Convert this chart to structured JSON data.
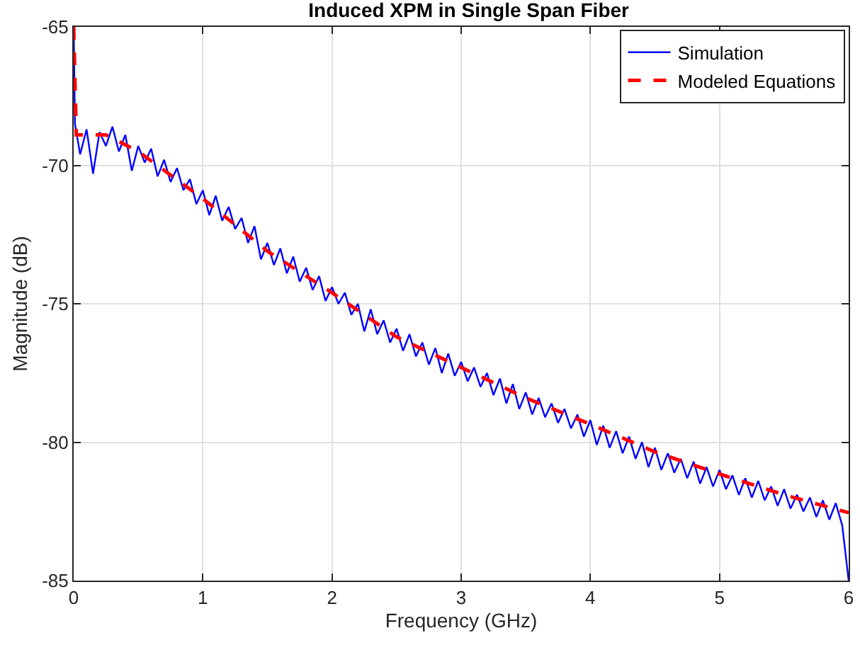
{
  "chart_data": {
    "type": "line",
    "title": "Induced XPM in Single Span Fiber",
    "xlabel": "Frequency (GHz)",
    "ylabel": "Magnitude (dB)",
    "xlim": [
      0,
      6
    ],
    "ylim": [
      -85,
      -65
    ],
    "xticks": [
      0,
      1,
      2,
      3,
      4,
      5,
      6
    ],
    "yticks": [
      -85,
      -80,
      -75,
      -70,
      -65
    ],
    "grid": true,
    "legend": "top right",
    "series": [
      {
        "name": "Simulation",
        "color": "#0000ff",
        "line_style": "solid",
        "x": [
          0,
          0.01,
          0.05,
          0.1,
          0.15,
          0.2,
          0.25,
          0.3,
          0.35,
          0.4,
          0.45,
          0.5,
          0.55,
          0.6,
          0.65,
          0.7,
          0.75,
          0.8,
          0.85,
          0.9,
          0.95,
          1,
          1.05,
          1.1,
          1.15,
          1.2,
          1.25,
          1.3,
          1.35,
          1.4,
          1.45,
          1.5,
          1.55,
          1.6,
          1.65,
          1.7,
          1.75,
          1.8,
          1.85,
          1.9,
          1.95,
          2,
          2.05,
          2.1,
          2.15,
          2.2,
          2.25,
          2.3,
          2.35,
          2.4,
          2.45,
          2.5,
          2.55,
          2.6,
          2.65,
          2.7,
          2.75,
          2.8,
          2.85,
          2.9,
          2.95,
          3,
          3.05,
          3.1,
          3.15,
          3.2,
          3.25,
          3.3,
          3.35,
          3.4,
          3.45,
          3.5,
          3.55,
          3.6,
          3.65,
          3.7,
          3.75,
          3.8,
          3.85,
          3.9,
          3.95,
          4,
          4.05,
          4.1,
          4.15,
          4.2,
          4.25,
          4.3,
          4.35,
          4.4,
          4.45,
          4.5,
          4.55,
          4.6,
          4.65,
          4.7,
          4.75,
          4.8,
          4.85,
          4.9,
          4.95,
          5,
          5.05,
          5.1,
          5.15,
          5.2,
          5.25,
          5.3,
          5.35,
          5.4,
          5.45,
          5.5,
          5.55,
          5.6,
          5.65,
          5.7,
          5.75,
          5.8,
          5.85,
          5.9,
          5.95,
          6
        ],
        "values": [
          -65,
          -68.5,
          -69.6,
          -68.7,
          -70.3,
          -68.8,
          -69.3,
          -68.6,
          -69.5,
          -68.9,
          -70.2,
          -69.3,
          -69.9,
          -69.4,
          -70.4,
          -69.8,
          -70.6,
          -70.1,
          -70.9,
          -70.5,
          -71.4,
          -70.9,
          -71.8,
          -71.1,
          -72,
          -71.5,
          -72.3,
          -71.9,
          -72.8,
          -72.2,
          -73.4,
          -72.8,
          -73.6,
          -73,
          -73.9,
          -73.3,
          -74.2,
          -73.7,
          -74.5,
          -74,
          -74.9,
          -74.4,
          -75,
          -74.6,
          -75.4,
          -75,
          -76,
          -75.2,
          -76.1,
          -75.6,
          -76.4,
          -75.9,
          -76.7,
          -76.1,
          -76.9,
          -76.4,
          -77.2,
          -76.6,
          -77.5,
          -76.8,
          -77.6,
          -77.1,
          -77.8,
          -77.3,
          -78,
          -77.5,
          -78.3,
          -77.7,
          -78.6,
          -77.9,
          -78.8,
          -78.2,
          -79,
          -78.4,
          -79.1,
          -78.6,
          -79.3,
          -78.8,
          -79.5,
          -79,
          -79.8,
          -79.2,
          -80.1,
          -79.4,
          -80.2,
          -79.6,
          -80.4,
          -79.8,
          -80.6,
          -80,
          -80.9,
          -80.2,
          -81,
          -80.4,
          -81.1,
          -80.6,
          -81.3,
          -80.7,
          -81.5,
          -80.9,
          -81.6,
          -81,
          -81.7,
          -81.2,
          -81.9,
          -81.3,
          -82,
          -81.4,
          -82.1,
          -81.6,
          -82.3,
          -81.7,
          -82.4,
          -81.9,
          -82.5,
          -82,
          -82.7,
          -82.1,
          -82.8,
          -82.2,
          -83,
          -85
        ]
      },
      {
        "name": "Modeled Equations",
        "color": "#ff0000",
        "line_style": "dashed",
        "x": [
          0,
          0.02,
          0.25,
          0.5,
          1,
          1.5,
          2,
          2.5,
          3,
          3.5,
          4,
          4.5,
          5,
          5.5,
          6
        ],
        "values": [
          -65,
          -68.9,
          -68.9,
          -69.5,
          -71.2,
          -73.1,
          -74.6,
          -76.2,
          -77.3,
          -78.4,
          -79.35,
          -80.35,
          -81.15,
          -81.9,
          -82.55
        ]
      }
    ]
  }
}
